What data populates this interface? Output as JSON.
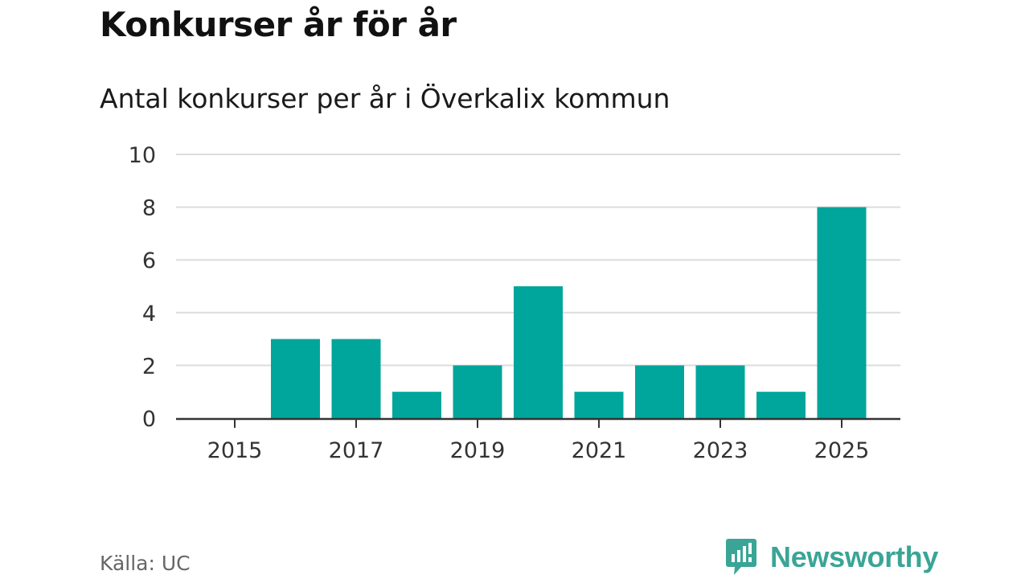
{
  "header": {
    "title": "Konkurser år för år",
    "subtitle": "Antal konkurser per år i Överkalix kommun"
  },
  "footer": {
    "source": "Källa: UC",
    "brand": "Newsworthy"
  },
  "colors": {
    "bar": "#00a59b",
    "grid": "#dcdcdc",
    "axis": "#333333",
    "brand": "#3aa596"
  },
  "chart_data": {
    "type": "bar",
    "title": "Konkurser år för år",
    "subtitle": "Antal konkurser per år i Överkalix kommun",
    "xlabel": "",
    "ylabel": "",
    "x": [
      2015,
      2016,
      2017,
      2018,
      2019,
      2020,
      2021,
      2022,
      2023,
      2024,
      2025
    ],
    "values": [
      0,
      3,
      3,
      1,
      2,
      5,
      1,
      2,
      2,
      1,
      8
    ],
    "ylim": [
      0,
      10
    ],
    "yticks": [
      "0",
      "2",
      "4",
      "6",
      "8",
      "10"
    ],
    "xticks": [
      "2015",
      "2017",
      "2019",
      "2021",
      "2023",
      "2025"
    ],
    "grid": true,
    "legend": "none"
  }
}
